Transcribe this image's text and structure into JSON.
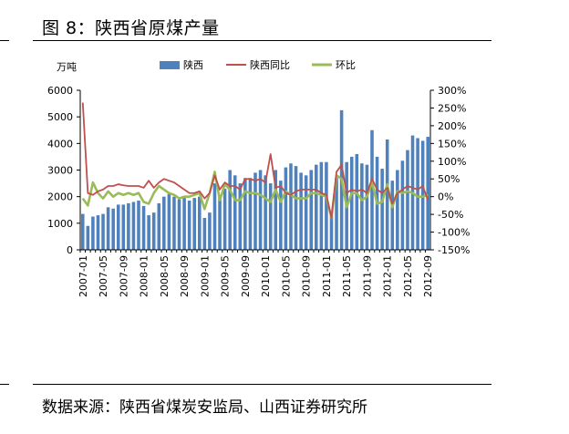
{
  "title": "图 8：陕西省原煤产量",
  "source": "数据来源：陕西省煤炭安监局、山西证券研究所",
  "chart_data": {
    "type": "bar",
    "y_unit_label": "万吨",
    "legend": [
      "陕西",
      "陕西同比",
      "环比"
    ],
    "colors": {
      "bar": "#4f81bd",
      "yoy": "#c0504d",
      "mom": "#9bbb59"
    },
    "ylim_left": [
      0,
      6000
    ],
    "left_ticks": [
      "0",
      "1000",
      "2000",
      "3000",
      "4000",
      "5000",
      "6000"
    ],
    "ylim_right": [
      -150,
      300
    ],
    "right_ticks": [
      "-150%",
      "-100%",
      "-50%",
      "0%",
      "50%",
      "100%",
      "150%",
      "200%",
      "250%",
      "300%"
    ],
    "x_tick_labels": [
      "2007-01",
      "2007-05",
      "2007-09",
      "2008-01",
      "2008-05",
      "2008-09",
      "2009-01",
      "2009-05",
      "2009-09",
      "2010-01",
      "2010-05",
      "2010-09",
      "2011-01",
      "2011-05",
      "2011-09",
      "2012-01",
      "2012-05",
      "2012-09"
    ],
    "months": [
      "2007-01",
      "2007-02",
      "2007-03",
      "2007-04",
      "2007-05",
      "2007-06",
      "2007-07",
      "2007-08",
      "2007-09",
      "2007-10",
      "2007-11",
      "2007-12",
      "2008-01",
      "2008-02",
      "2008-03",
      "2008-04",
      "2008-05",
      "2008-06",
      "2008-07",
      "2008-08",
      "2008-09",
      "2008-10",
      "2008-11",
      "2008-12",
      "2009-01",
      "2009-02",
      "2009-03",
      "2009-04",
      "2009-05",
      "2009-06",
      "2009-07",
      "2009-08",
      "2009-09",
      "2009-10",
      "2009-11",
      "2009-12",
      "2010-01",
      "2010-02",
      "2010-03",
      "2010-04",
      "2010-05",
      "2010-06",
      "2010-07",
      "2010-08",
      "2010-09",
      "2010-10",
      "2010-11",
      "2010-12",
      "2011-01",
      "2011-02",
      "2011-03",
      "2011-04",
      "2011-05",
      "2011-06",
      "2011-07",
      "2011-08",
      "2011-09",
      "2011-10",
      "2011-11",
      "2011-12",
      "2012-01",
      "2012-02",
      "2012-03",
      "2012-04",
      "2012-05",
      "2012-06",
      "2012-07",
      "2012-08",
      "2012-09"
    ],
    "series": [
      {
        "name": "陕西",
        "axis": "left",
        "values": [
          1350,
          900,
          1250,
          1300,
          1350,
          1600,
          1550,
          1700,
          1700,
          1750,
          1800,
          1850,
          1650,
          1300,
          1400,
          1750,
          2000,
          2100,
          2000,
          1900,
          1950,
          1850,
          1950,
          2000,
          1200,
          1400,
          2500,
          2000,
          2300,
          3000,
          2800,
          2500,
          2700,
          2700,
          2900,
          3000,
          2800,
          2500,
          3000,
          2600,
          3100,
          3250,
          3150,
          2900,
          2800,
          3000,
          3200,
          3300,
          3300,
          1300,
          2700,
          5250,
          3300,
          3500,
          3600,
          3250,
          3200,
          4500,
          3500,
          3050,
          4150,
          2600,
          3000,
          3350,
          3750,
          4300,
          4200,
          4100,
          4250
        ]
      },
      {
        "name": "陕西同比",
        "axis": "right",
        "values": [
          265,
          10,
          5,
          15,
          20,
          30,
          30,
          35,
          32,
          30,
          30,
          30,
          25,
          45,
          25,
          40,
          50,
          45,
          40,
          30,
          20,
          10,
          10,
          15,
          -5,
          10,
          60,
          20,
          40,
          30,
          30,
          20,
          50,
          50,
          45,
          50,
          40,
          120,
          25,
          30,
          10,
          5,
          15,
          20,
          20,
          20,
          20,
          10,
          5,
          -60,
          70,
          90,
          10,
          20,
          15,
          20,
          10,
          50,
          20,
          10,
          25,
          -20,
          10,
          20,
          30,
          25,
          20,
          30,
          -10
        ]
      },
      {
        "name": "环比",
        "axis": "right",
        "values": [
          -5,
          -25,
          40,
          10,
          -5,
          15,
          0,
          10,
          5,
          10,
          5,
          10,
          -15,
          -20,
          10,
          30,
          20,
          10,
          5,
          -5,
          0,
          0,
          5,
          10,
          -35,
          10,
          70,
          -10,
          35,
          20,
          -10,
          -10,
          15,
          10,
          10,
          5,
          -5,
          -15,
          20,
          -15,
          15,
          5,
          -5,
          -5,
          -5,
          10,
          10,
          5,
          0,
          -60,
          60,
          50,
          -30,
          10,
          10,
          -10,
          0,
          40,
          -20,
          -15,
          35,
          -30,
          15,
          10,
          15,
          10,
          0,
          0,
          5
        ]
      }
    ]
  }
}
